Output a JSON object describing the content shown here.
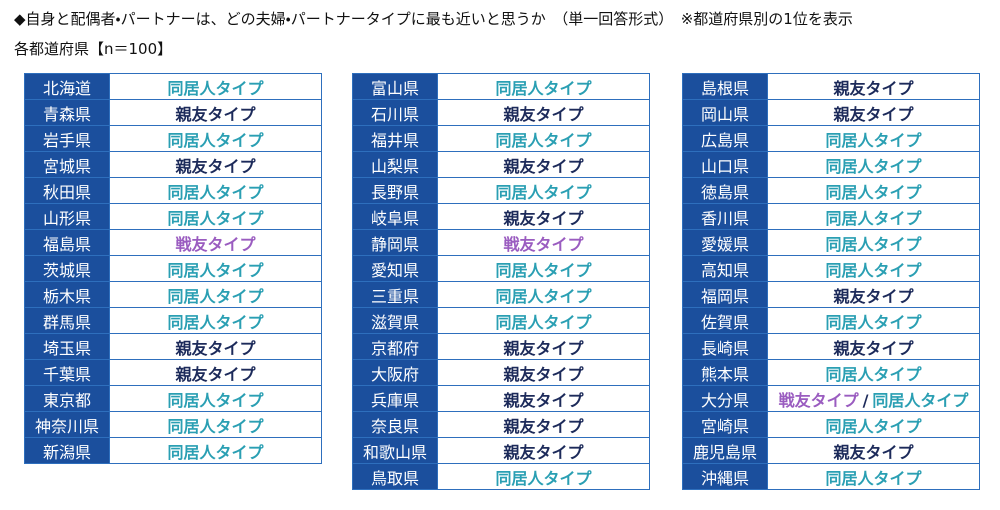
{
  "header": {
    "title": "◆自身と配偶者・パートナーは、どの夫婦・パートナータイプに最も近いと思うか　（単一回答形式）　※都道府県別の1位を表示",
    "subtitle": "各都道府県【n＝100】"
  },
  "type_colors": {
    "同居人タイプ": "#2a9fb3",
    "親友タイプ": "#1c2a5a",
    "戦友タイプ": "#9a5cc0"
  },
  "tables": [
    [
      [
        "北海道",
        "同居人タイプ"
      ],
      [
        "青森県",
        "親友タイプ"
      ],
      [
        "岩手県",
        "同居人タイプ"
      ],
      [
        "宮城県",
        "親友タイプ"
      ],
      [
        "秋田県",
        "同居人タイプ"
      ],
      [
        "山形県",
        "同居人タイプ"
      ],
      [
        "福島県",
        "戦友タイプ"
      ],
      [
        "茨城県",
        "同居人タイプ"
      ],
      [
        "栃木県",
        "同居人タイプ"
      ],
      [
        "群馬県",
        "同居人タイプ"
      ],
      [
        "埼玉県",
        "親友タイプ"
      ],
      [
        "千葉県",
        "親友タイプ"
      ],
      [
        "東京都",
        "同居人タイプ"
      ],
      [
        "神奈川県",
        "同居人タイプ"
      ],
      [
        "新潟県",
        "同居人タイプ"
      ]
    ],
    [
      [
        "富山県",
        "同居人タイプ"
      ],
      [
        "石川県",
        "親友タイプ"
      ],
      [
        "福井県",
        "同居人タイプ"
      ],
      [
        "山梨県",
        "親友タイプ"
      ],
      [
        "長野県",
        "同居人タイプ"
      ],
      [
        "岐阜県",
        "親友タイプ"
      ],
      [
        "静岡県",
        "戦友タイプ"
      ],
      [
        "愛知県",
        "同居人タイプ"
      ],
      [
        "三重県",
        "同居人タイプ"
      ],
      [
        "滋賀県",
        "同居人タイプ"
      ],
      [
        "京都府",
        "親友タイプ"
      ],
      [
        "大阪府",
        "親友タイプ"
      ],
      [
        "兵庫県",
        "親友タイプ"
      ],
      [
        "奈良県",
        "親友タイプ"
      ],
      [
        "和歌山県",
        "親友タイプ"
      ],
      [
        "鳥取県",
        "同居人タイプ"
      ]
    ],
    [
      [
        "島根県",
        "親友タイプ"
      ],
      [
        "岡山県",
        "親友タイプ"
      ],
      [
        "広島県",
        "同居人タイプ"
      ],
      [
        "山口県",
        "同居人タイプ"
      ],
      [
        "徳島県",
        "同居人タイプ"
      ],
      [
        "香川県",
        "同居人タイプ"
      ],
      [
        "愛媛県",
        "同居人タイプ"
      ],
      [
        "高知県",
        "同居人タイプ"
      ],
      [
        "福岡県",
        "親友タイプ"
      ],
      [
        "佐賀県",
        "同居人タイプ"
      ],
      [
        "長崎県",
        "親友タイプ"
      ],
      [
        "熊本県",
        "同居人タイプ"
      ],
      [
        "大分県",
        "戦友タイプ",
        "/",
        "同居人タイプ"
      ],
      [
        "宮崎県",
        "同居人タイプ"
      ],
      [
        "鹿児島県",
        "親友タイプ"
      ],
      [
        "沖縄県",
        "同居人タイプ"
      ]
    ]
  ]
}
